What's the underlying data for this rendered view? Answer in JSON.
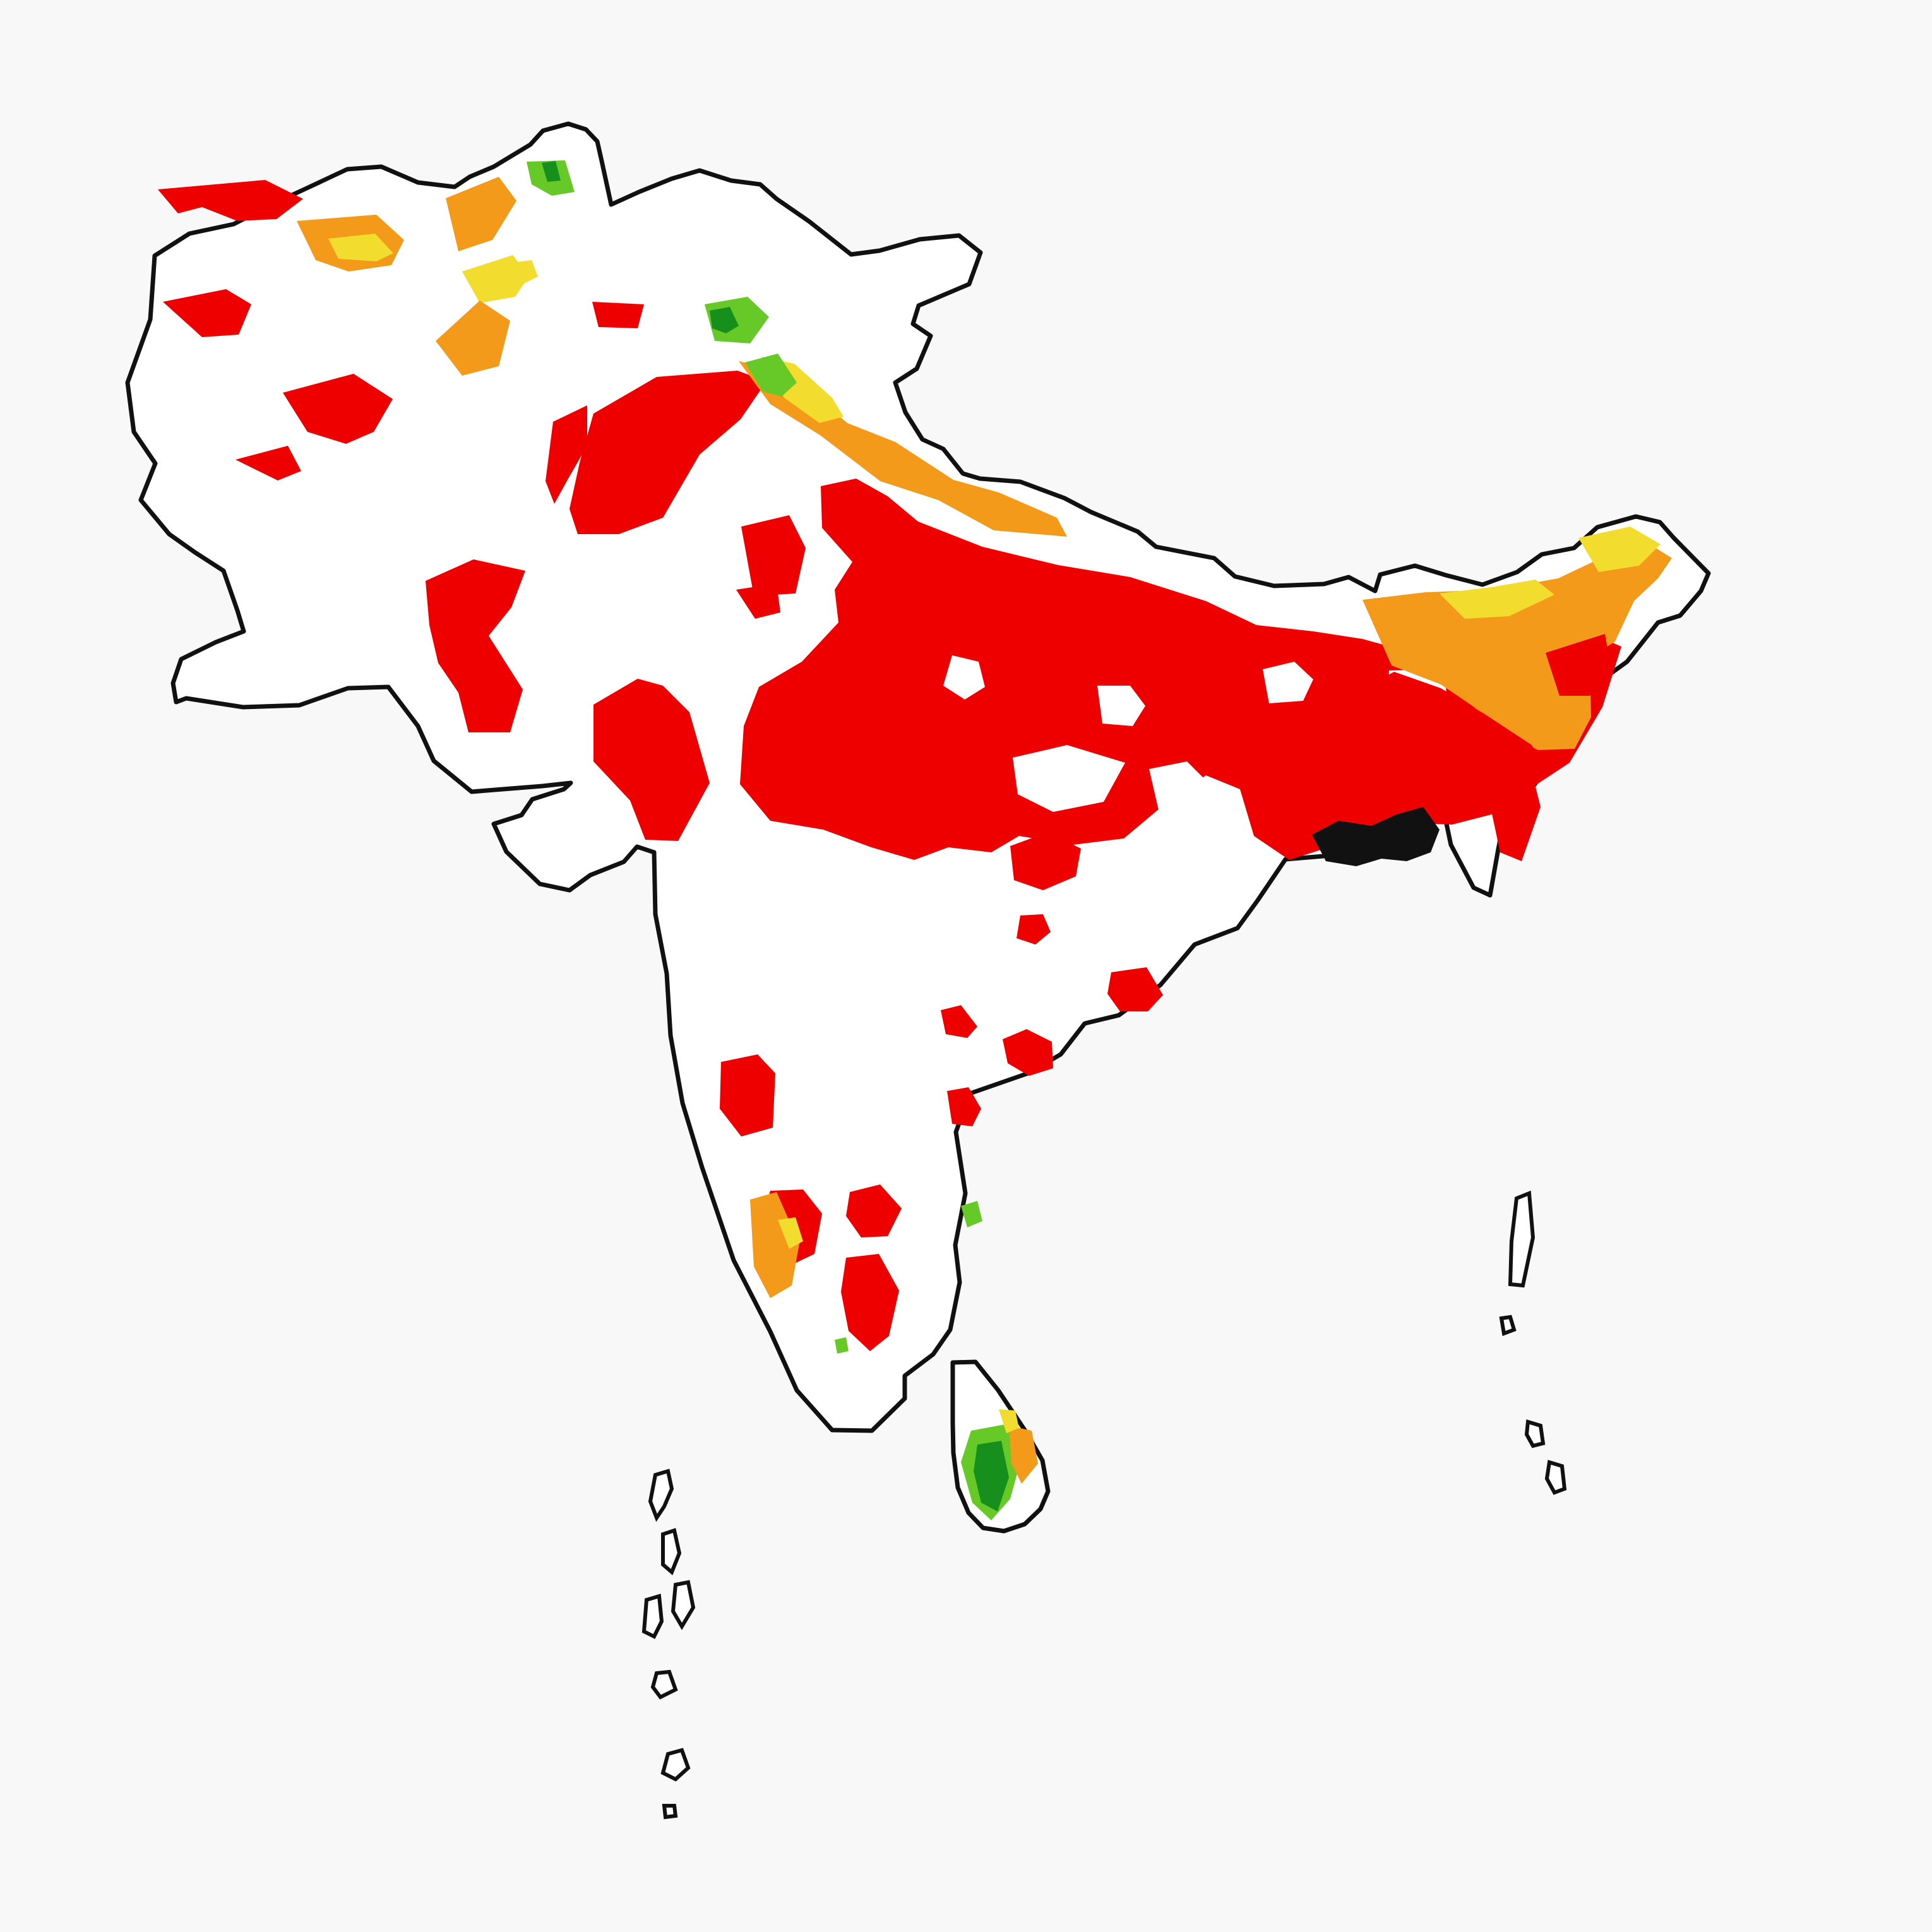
{
  "map": {
    "title": "",
    "legend": [],
    "colors": {
      "background": "#f8f8f8",
      "land": "#ffffff",
      "border": "#111111",
      "category_1": "#ee0000",
      "category_2": "#f39a1b",
      "category_3": "#f2dc2d",
      "category_4": "#67c928",
      "category_5": "#178f1d"
    },
    "regions_visible": [
      "northwest-highlands",
      "indus-plain",
      "northern-plains",
      "northeast",
      "peninsula",
      "sri-lanka",
      "maldives",
      "andaman-islands"
    ]
  }
}
